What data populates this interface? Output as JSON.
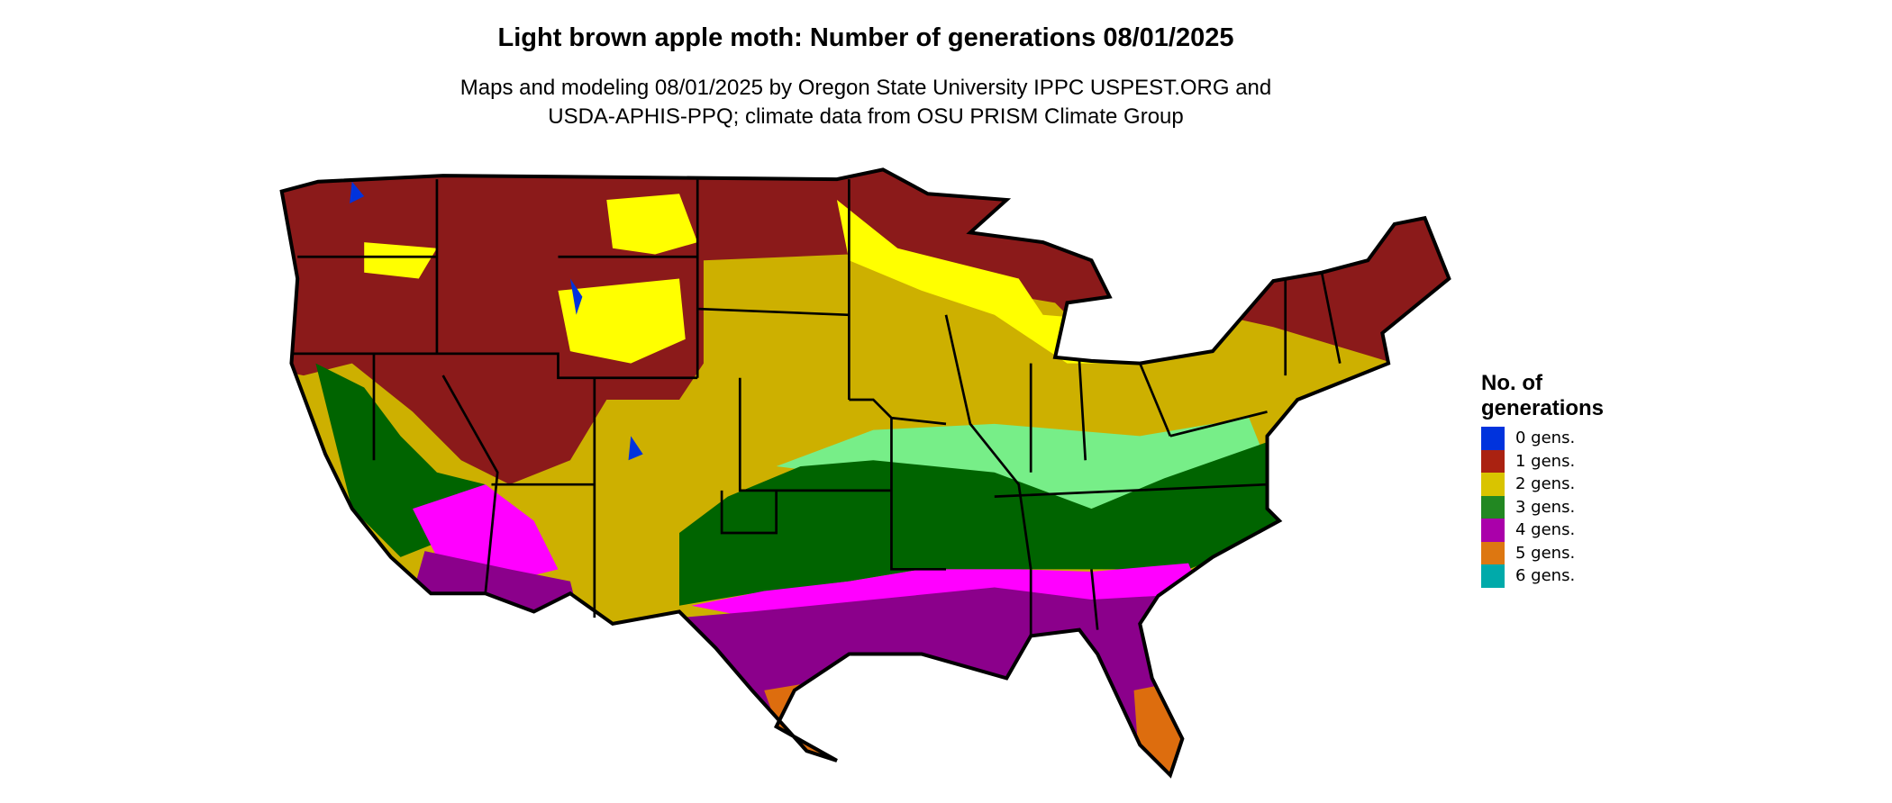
{
  "title": "Light brown apple moth: Number of generations 08/01/2025",
  "subtitle_line1": "Maps and modeling 08/01/2025 by Oregon State University IPPC USPEST.ORG and",
  "subtitle_line2": "USDA-APHIS-PPQ; climate data from OSU PRISM Climate Group",
  "legend": {
    "title_line1": "No. of",
    "title_line2": "generations",
    "items": [
      {
        "label": "0 gens.",
        "color": "#0033dd"
      },
      {
        "label": "1 gens.",
        "color": "#aa2211"
      },
      {
        "label": "2 gens.",
        "color": "#d9c400"
      },
      {
        "label": "3 gens.",
        "color": "#228822"
      },
      {
        "label": "4 gens.",
        "color": "#aa00aa"
      },
      {
        "label": "5 gens.",
        "color": "#dd7711"
      },
      {
        "label": "6 gens.",
        "color": "#00aaaa"
      }
    ]
  },
  "map_colors": {
    "gen1_dark": "#8b1a1a",
    "gen2_bright": "#ffff00",
    "gen2": "#cdb000",
    "gen3_light": "#77ee88",
    "gen3": "#006400",
    "gen4_bright": "#ff00ff",
    "gen4": "#8b008b",
    "gen5": "#dd6d0e",
    "border": "#000000"
  }
}
